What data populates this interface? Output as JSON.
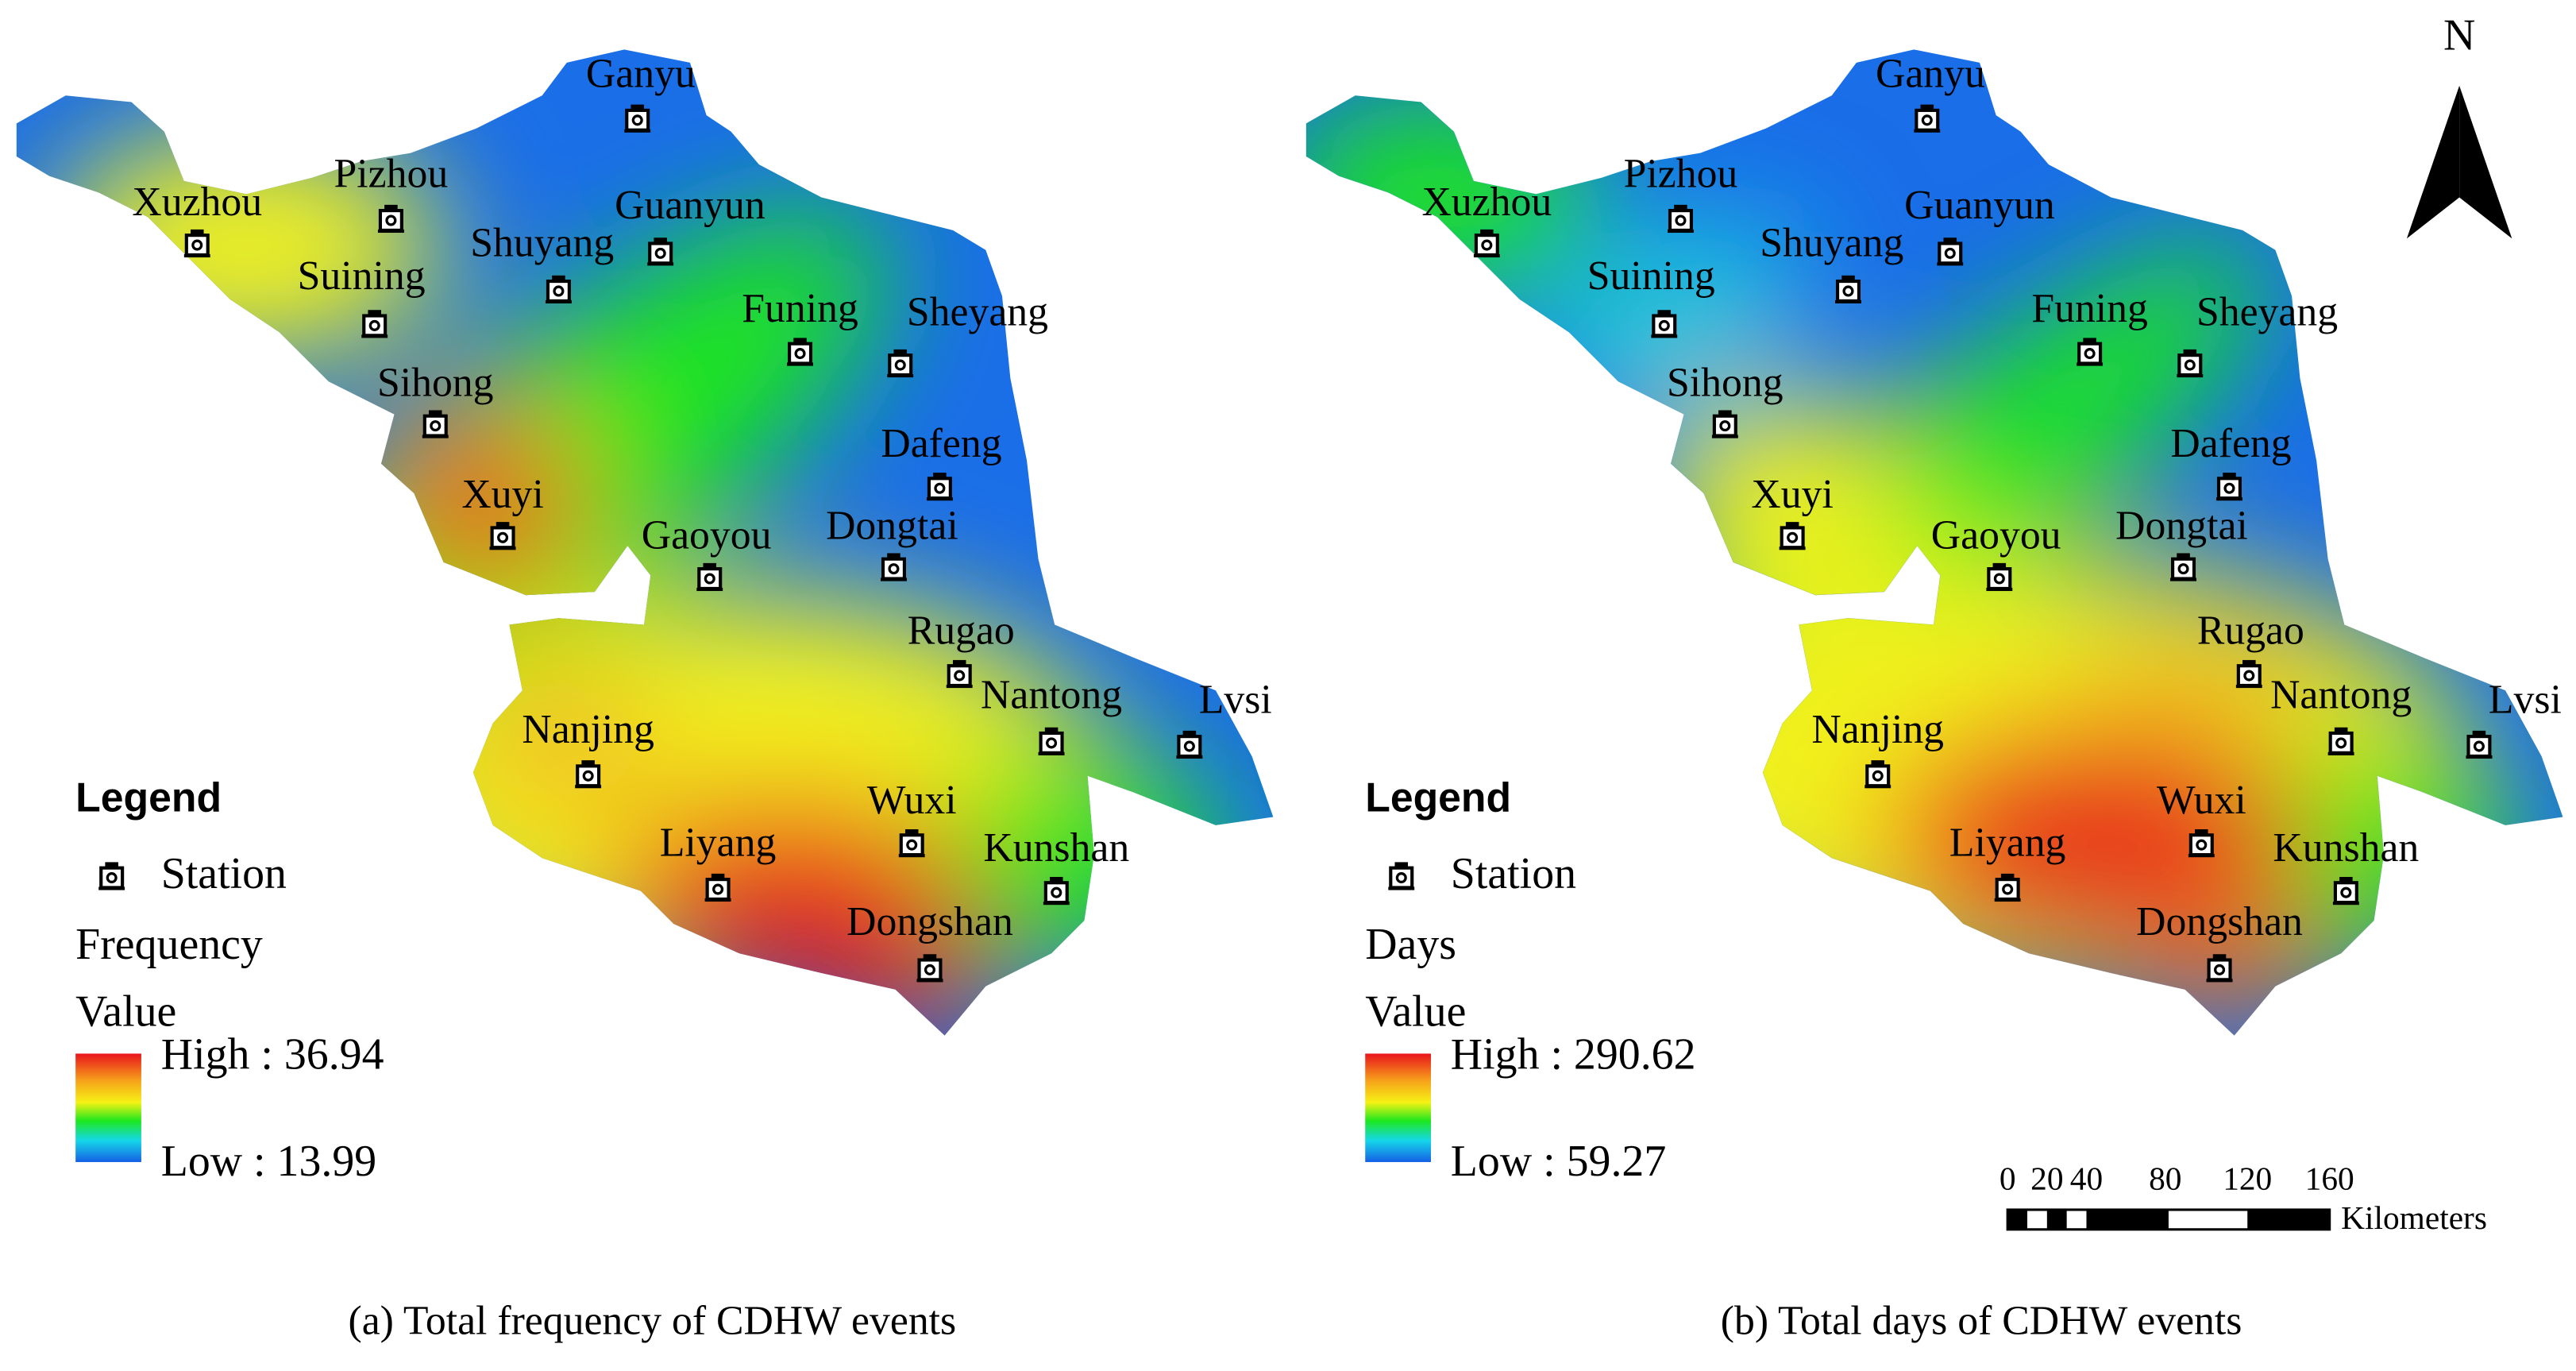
{
  "panels": [
    {
      "stations": [
        "Ganyu",
        "Pizhou",
        "Xuzhou",
        "Guanyun",
        "Shuyang",
        "Suining",
        "Funing",
        "Sheyang",
        "Sihong",
        "Dafeng",
        "Xuyi",
        "Gaoyou",
        "Dongtai",
        "Rugao",
        "Nantong",
        "Lvsi",
        "Nanjing",
        "Wuxi",
        "Liyang",
        "Kunshan",
        "Dongshan"
      ],
      "legend": {
        "title": "Legend",
        "station": "Station",
        "variable": "Frequency",
        "value": "Value",
        "high": "High : 36.94",
        "low": "Low : 13.99"
      },
      "caption": "(a) Total frequency of CDHW events"
    },
    {
      "stations": [
        "Ganyu",
        "Pizhou",
        "Xuzhou",
        "Guanyun",
        "Shuyang",
        "Suining",
        "Funing",
        "Sheyang",
        "Sihong",
        "Dafeng",
        "Xuyi",
        "Gaoyou",
        "Dongtai",
        "Rugao",
        "Nantong",
        "Lvsi",
        "Nanjing",
        "Wuxi",
        "Liyang",
        "Kunshan",
        "Dongshan"
      ],
      "legend": {
        "title": "Legend",
        "station": "Station",
        "variable": "Days",
        "value": "Value",
        "high": "High : 290.62",
        "low": "Low : 59.27"
      },
      "caption": "(b) Total days of CDHW events"
    }
  ],
  "north": "N",
  "scale_bar": {
    "labels": [
      "0",
      "20",
      "40",
      "80",
      "120",
      "160"
    ],
    "unit": "Kilometers"
  }
}
